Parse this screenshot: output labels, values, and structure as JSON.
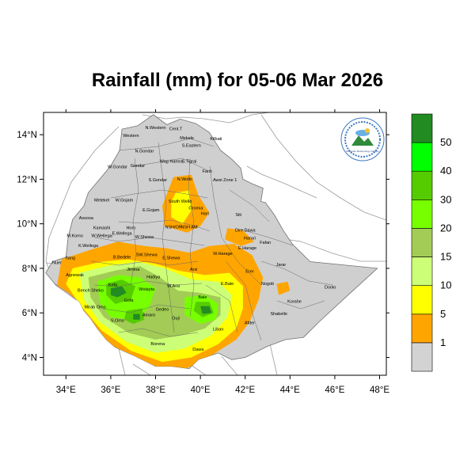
{
  "title": "Rainfall (mm) for 05-06 Mar 2026",
  "map": {
    "lon_range": [
      33,
      48.3
    ],
    "lat_range": [
      3.2,
      15.0
    ],
    "x_ticks": [
      "34°E",
      "36°E",
      "38°E",
      "40°E",
      "42°E",
      "44°E",
      "46°E",
      "48°E"
    ],
    "y_ticks": [
      "4°N",
      "6°N",
      "8°N",
      "10°N",
      "12°N",
      "14°N"
    ],
    "land_color": "#cfcfcf",
    "logo_label": "Ethiopian Meteorology Institute"
  },
  "colorbar": {
    "labels": [
      "1",
      "5",
      "10",
      "15",
      "20",
      "30",
      "40",
      "50"
    ],
    "colors": [
      "#d3d3d3",
      "#ffa500",
      "#ffff00",
      "#ccff77",
      "#a2cc55",
      "#77ff00",
      "#55cc00",
      "#00ff00",
      "#228b22"
    ]
  },
  "regions": [
    {
      "name": "Western",
      "lon": 36.9,
      "lat": 13.9
    },
    {
      "name": "N.Western",
      "lon": 38.0,
      "lat": 14.25
    },
    {
      "name": "Cent.T",
      "lon": 38.9,
      "lat": 14.2
    },
    {
      "name": "Mekele",
      "lon": 39.4,
      "lat": 13.8
    },
    {
      "name": "S.Eastern",
      "lon": 39.6,
      "lat": 13.45
    },
    {
      "name": "Kilbati",
      "lon": 40.7,
      "lat": 13.75
    },
    {
      "name": "N.Gondar",
      "lon": 37.5,
      "lat": 13.2
    },
    {
      "name": "Wag Hamra",
      "lon": 38.7,
      "lat": 12.75
    },
    {
      "name": "S.Tigrai",
      "lon": 39.5,
      "lat": 12.75
    },
    {
      "name": "W.Gondar",
      "lon": 36.3,
      "lat": 12.5
    },
    {
      "name": "Gondar",
      "lon": 37.2,
      "lat": 12.55
    },
    {
      "name": "Fanti",
      "lon": 40.3,
      "lat": 12.3
    },
    {
      "name": "S.Gondar",
      "lon": 38.1,
      "lat": 11.9
    },
    {
      "name": "N.Wollo",
      "lon": 39.3,
      "lat": 11.95
    },
    {
      "name": "Awsi Zone 1",
      "lon": 41.1,
      "lat": 11.9
    },
    {
      "name": "Metekel",
      "lon": 35.6,
      "lat": 11.0
    },
    {
      "name": "W.Gojam",
      "lon": 36.6,
      "lat": 11.0
    },
    {
      "name": "E.Gojam",
      "lon": 37.8,
      "lat": 10.55
    },
    {
      "name": "South Wello",
      "lon": 39.1,
      "lat": 10.95
    },
    {
      "name": "Oromia",
      "lon": 39.8,
      "lat": 10.65
    },
    {
      "name": "Hari",
      "lon": 40.2,
      "lat": 10.4
    },
    {
      "name": "Siti",
      "lon": 41.7,
      "lat": 10.35
    },
    {
      "name": "Assosa",
      "lon": 34.9,
      "lat": 10.2
    },
    {
      "name": "Kamashi",
      "lon": 35.6,
      "lat": 9.75
    },
    {
      "name": "Horo",
      "lon": 36.9,
      "lat": 9.75
    },
    {
      "name": "NSH/OR",
      "lon": 38.8,
      "lat": 9.8
    },
    {
      "name": "NSH AM",
      "lon": 39.5,
      "lat": 9.8
    },
    {
      "name": "W.Wellega",
      "lon": 35.6,
      "lat": 9.4
    },
    {
      "name": "E.Wellega",
      "lon": 36.5,
      "lat": 9.5
    },
    {
      "name": "W.Shewa",
      "lon": 37.5,
      "lat": 9.35
    },
    {
      "name": "Dire Dawa",
      "lon": 42.0,
      "lat": 9.65
    },
    {
      "name": "Harari",
      "lon": 42.2,
      "lat": 9.3
    },
    {
      "name": "Fafan",
      "lon": 42.9,
      "lat": 9.1
    },
    {
      "name": "M.Komo",
      "lon": 34.4,
      "lat": 9.4
    },
    {
      "name": "K.Wellega",
      "lon": 35.0,
      "lat": 8.95
    },
    {
      "name": "W.Harage",
      "lon": 41.0,
      "lat": 8.6
    },
    {
      "name": "E.Harage",
      "lon": 42.1,
      "lat": 8.85
    },
    {
      "name": "B.Bedele",
      "lon": 36.5,
      "lat": 8.45
    },
    {
      "name": "SW.Shewa",
      "lon": 37.6,
      "lat": 8.55
    },
    {
      "name": "E.Shewa",
      "lon": 38.7,
      "lat": 8.4
    },
    {
      "name": "Jarar",
      "lon": 43.6,
      "lat": 8.1
    },
    {
      "name": "Nuer",
      "lon": 33.6,
      "lat": 8.2
    },
    {
      "name": "Itang",
      "lon": 34.2,
      "lat": 8.4
    },
    {
      "name": "Jimma",
      "lon": 37.0,
      "lat": 7.9
    },
    {
      "name": "Arsi",
      "lon": 39.7,
      "lat": 7.9
    },
    {
      "name": "Erer",
      "lon": 42.2,
      "lat": 7.8
    },
    {
      "name": "Agnewak",
      "lon": 34.4,
      "lat": 7.65
    },
    {
      "name": "Hadiya",
      "lon": 37.9,
      "lat": 7.55
    },
    {
      "name": "E.Bale",
      "lon": 41.2,
      "lat": 7.25
    },
    {
      "name": "Nogob",
      "lon": 43.0,
      "lat": 7.25
    },
    {
      "name": "Doolo",
      "lon": 45.8,
      "lat": 7.1
    },
    {
      "name": "Kefa",
      "lon": 36.1,
      "lat": 7.2
    },
    {
      "name": "Bench Sheko",
      "lon": 35.1,
      "lat": 6.95
    },
    {
      "name": "Wolayta",
      "lon": 37.6,
      "lat": 7.0
    },
    {
      "name": "W.Arsi",
      "lon": 38.8,
      "lat": 7.15
    },
    {
      "name": "Korahe",
      "lon": 44.2,
      "lat": 6.45
    },
    {
      "name": "Mirab Omo",
      "lon": 35.3,
      "lat": 6.2
    },
    {
      "name": "Gofa",
      "lon": 36.8,
      "lat": 6.5
    },
    {
      "name": "Bale",
      "lon": 40.1,
      "lat": 6.65
    },
    {
      "name": "Shabelle",
      "lon": 43.5,
      "lat": 5.9
    },
    {
      "name": "Gedeo",
      "lon": 38.3,
      "lat": 6.1
    },
    {
      "name": "S.Omo",
      "lon": 36.3,
      "lat": 5.6
    },
    {
      "name": "Amaro",
      "lon": 37.7,
      "lat": 5.85
    },
    {
      "name": "Guji",
      "lon": 38.9,
      "lat": 5.7
    },
    {
      "name": "Afder",
      "lon": 42.2,
      "lat": 5.5
    },
    {
      "name": "Liban",
      "lon": 40.8,
      "lat": 5.2
    },
    {
      "name": "Borena",
      "lon": 38.1,
      "lat": 4.55
    },
    {
      "name": "Dawa",
      "lon": 39.9,
      "lat": 4.3
    }
  ]
}
